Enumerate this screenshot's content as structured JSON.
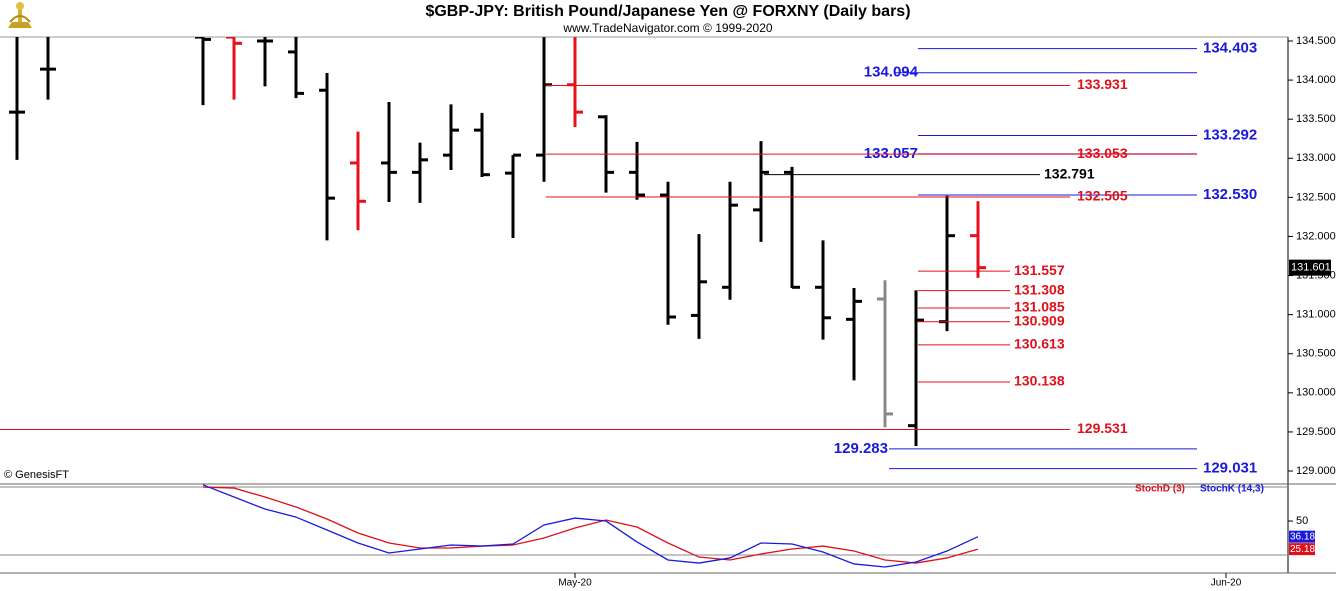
{
  "chart_data": [
    {
      "type": "ohlc",
      "title": "$GBP-JPY:  British Pound/Japanese Yen @ FORXNY  (Daily bars)",
      "subtitle": "www.TradeNavigator.com © 1999-2020",
      "source": "© GenesisFT",
      "categories": [
        null,
        null,
        null,
        null,
        null,
        null,
        null,
        null,
        null,
        null,
        null,
        null,
        null,
        null,
        null,
        null,
        null,
        null,
        "May-20",
        null,
        null,
        null,
        null,
        null,
        null,
        null,
        null,
        null,
        null,
        null,
        null,
        null,
        null,
        null,
        null,
        null,
        null,
        null,
        null,
        "Jun-20",
        null
      ],
      "open": [
        133.59,
        134.14,
        null,
        null,
        null,
        null,
        134.55,
        134.55,
        134.5,
        134.36,
        133.87,
        132.94,
        132.94,
        132.82,
        133.04,
        133.36,
        132.81,
        133.04,
        133.94,
        133.53,
        132.82,
        132.53,
        130.99,
        131.35,
        132.34,
        132.82,
        131.35,
        130.94,
        131.2,
        129.58,
        130.91,
        132.01,
        null,
        null,
        null,
        null,
        null,
        null,
        null,
        null,
        null
      ],
      "high": [
        134.6,
        134.6,
        null,
        null,
        null,
        null,
        134.6,
        134.6,
        134.6,
        134.6,
        134.09,
        133.34,
        133.72,
        133.2,
        133.69,
        133.58,
        133.04,
        134.55,
        134.55,
        133.55,
        133.21,
        132.7,
        132.03,
        132.7,
        133.22,
        132.89,
        131.95,
        131.34,
        131.44,
        131.31,
        132.52,
        132.45,
        null,
        null,
        null,
        null,
        null,
        null,
        null,
        null,
        null
      ],
      "low": [
        132.98,
        133.75,
        null,
        null,
        null,
        null,
        133.68,
        133.75,
        133.92,
        133.77,
        131.95,
        132.08,
        132.44,
        132.43,
        132.85,
        132.76,
        131.98,
        132.7,
        133.4,
        132.56,
        132.47,
        130.87,
        130.69,
        131.19,
        131.93,
        131.34,
        130.68,
        130.16,
        129.56,
        129.32,
        130.79,
        131.47,
        null,
        null,
        null,
        null,
        null,
        null,
        null,
        null,
        null
      ],
      "close": [
        133.59,
        134.14,
        null,
        null,
        null,
        null,
        134.52,
        134.47,
        134.5,
        133.83,
        132.49,
        132.45,
        132.82,
        132.98,
        133.36,
        132.79,
        133.04,
        133.94,
        133.59,
        132.82,
        132.53,
        130.97,
        131.42,
        132.4,
        132.82,
        131.35,
        130.96,
        131.17,
        129.73,
        130.93,
        132.01,
        131.601,
        null,
        null,
        null,
        null,
        null,
        null,
        null,
        null,
        null
      ],
      "colors": [
        "#000000",
        "#000000",
        null,
        null,
        null,
        null,
        "#000000",
        "#e8101a",
        "#000000",
        "#000000",
        "#000000",
        "#e8101a",
        "#000000",
        "#000000",
        "#000000",
        "#000000",
        "#000000",
        "#000000",
        "#e8101a",
        "#000000",
        "#000000",
        "#000000",
        "#000000",
        "#000000",
        "#000000",
        "#000000",
        "#000000",
        "#000000",
        "#888888",
        "#000000",
        "#000000",
        "#e8101a",
        null,
        null,
        null,
        null,
        null,
        null,
        null,
        null,
        null
      ],
      "ylim": [
        128.834,
        134.551
      ],
      "yticks": [
        {
          "value": 129,
          "label": "129.000"
        },
        {
          "value": 129.5,
          "label": "129.500"
        },
        {
          "value": 130,
          "label": "130.000"
        },
        {
          "value": 130.5,
          "label": "130.500"
        },
        {
          "value": 131,
          "label": "131.000"
        },
        {
          "value": 131.5,
          "label": "131.500"
        },
        {
          "value": 132,
          "label": "132.000"
        },
        {
          "value": 132.5,
          "label": "132.500"
        },
        {
          "value": 133,
          "label": "133.000"
        },
        {
          "value": 133.5,
          "label": "133.500"
        },
        {
          "value": 134,
          "label": "134.000"
        },
        {
          "value": 134.5,
          "label": "134.500"
        }
      ],
      "levels": [
        {
          "value": 134.403,
          "label": "134.403",
          "color": "#1a1adb"
        },
        {
          "value": 134.094,
          "label": "134.094",
          "color": "#1a1adb"
        },
        {
          "value": 133.931,
          "label": "133.931",
          "color": "#e0101a"
        },
        {
          "value": 133.292,
          "label": "133.292",
          "color": "#1a1adb"
        },
        {
          "value": 133.057,
          "label": "133.057",
          "color": "#1a1adb"
        },
        {
          "value": 133.053,
          "label": "133.053",
          "color": "#e0101a"
        },
        {
          "value": 132.791,
          "label": "132.791",
          "color": "#000000"
        },
        {
          "value": 132.53,
          "label": "132.530",
          "color": "#1a1adb"
        },
        {
          "value": 132.505,
          "label": "132.505",
          "color": "#e0101a"
        },
        {
          "value": 131.557,
          "label": "131.557",
          "color": "#e0101a"
        },
        {
          "value": 131.308,
          "label": "131.308",
          "color": "#e0101a"
        },
        {
          "value": 131.085,
          "label": "131.085",
          "color": "#e0101a"
        },
        {
          "value": 130.909,
          "label": "130.909",
          "color": "#e0101a"
        },
        {
          "value": 130.613,
          "label": "130.613",
          "color": "#e0101a"
        },
        {
          "value": 130.138,
          "label": "130.138",
          "color": "#e0101a"
        },
        {
          "value": 129.531,
          "label": "129.531",
          "color": "#e0101a"
        },
        {
          "value": 129.283,
          "label": "129.283",
          "color": "#1a1adb"
        },
        {
          "value": 129.031,
          "label": "129.031",
          "color": "#1a1adb"
        }
      ]
    },
    {
      "type": "line",
      "series": [
        {
          "name": "StochD (3)",
          "color": "#e0101a",
          "values": [
            null,
            null,
            null,
            null,
            null,
            null,
            80,
            79.1,
            71.2,
            62.4,
            51.8,
            39.4,
            30.6,
            26.2,
            26.2,
            27.9,
            28.8,
            35.0,
            43.8,
            50.9,
            44.7,
            30.6,
            18.2,
            15.6,
            20.9,
            25.3,
            27.9,
            23.5,
            15.6,
            12.9,
            17.4,
            25.18,
            null,
            null,
            null,
            null,
            null,
            null,
            null,
            null,
            null
          ]
        },
        {
          "name": "StochK (14,3)",
          "color": "#1a1adb",
          "values": [
            null,
            null,
            null,
            null,
            null,
            null,
            82,
            71.2,
            60.6,
            53.5,
            42.1,
            30.6,
            21.8,
            25.3,
            28.8,
            27.9,
            29.7,
            46.5,
            52.6,
            50.0,
            31.5,
            15.6,
            12.9,
            17.4,
            30.6,
            29.7,
            22.6,
            12.1,
            9.4,
            13.8,
            23.5,
            36.18,
            null,
            null,
            null,
            null,
            null,
            null,
            null,
            null,
            null
          ]
        }
      ],
      "ylim": [
        4.1,
        82.7
      ],
      "yticks": [
        50
      ],
      "reference_lines": [
        20,
        80
      ]
    }
  ]
}
